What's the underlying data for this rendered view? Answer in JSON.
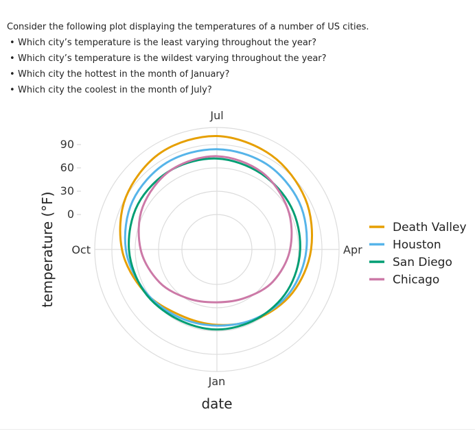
{
  "question": {
    "intro": "Consider the following plot displaying the temperatures of a number of US cities.",
    "items": [
      "Which city’s temperature is the least varying throughout the year?",
      "Which city’s temperature is the wildest varying throughout the year?",
      "Which city the hottest in the month of January?",
      "Which city the coolest in the month of July?"
    ]
  },
  "chart_data": {
    "type": "line",
    "coord": "polar",
    "xlabel": "date",
    "ylabel": "temperature (°F)",
    "x_ticks": [
      "Jan",
      "Apr",
      "Jul",
      "Oct"
    ],
    "y_ticks": [
      0,
      30,
      60,
      90
    ],
    "ylim": [
      -45,
      112
    ],
    "legend_position": "right",
    "grid": true,
    "series": [
      {
        "name": "Death Valley",
        "color": "#E69F00",
        "x": [
          "Jan",
          "Feb",
          "Mar",
          "Apr",
          "May",
          "Jun",
          "Jul",
          "Aug",
          "Sep",
          "Oct",
          "Nov",
          "Dec"
        ],
        "values": [
          52,
          58,
          67,
          76,
          86,
          95,
          101,
          99,
          90,
          77,
          63,
          52
        ]
      },
      {
        "name": "Houston",
        "color": "#56B4E9",
        "x": [
          "Jan",
          "Feb",
          "Mar",
          "Apr",
          "May",
          "Jun",
          "Jul",
          "Aug",
          "Sep",
          "Oct",
          "Nov",
          "Dec"
        ],
        "values": [
          53,
          57,
          64,
          70,
          77,
          82,
          84,
          84,
          80,
          72,
          62,
          55
        ]
      },
      {
        "name": "San Diego",
        "color": "#009E73",
        "x": [
          "Jan",
          "Feb",
          "Mar",
          "Apr",
          "May",
          "Jun",
          "Jul",
          "Aug",
          "Sep",
          "Oct",
          "Nov",
          "Dec"
        ],
        "values": [
          58,
          58,
          60,
          62,
          65,
          68,
          72,
          73,
          72,
          68,
          63,
          58
        ]
      },
      {
        "name": "Chicago",
        "color": "#CC79A7",
        "x": [
          "Jan",
          "Feb",
          "Mar",
          "Apr",
          "May",
          "Jun",
          "Jul",
          "Aug",
          "Sep",
          "Oct",
          "Nov",
          "Dec"
        ],
        "values": [
          23,
          27,
          38,
          49,
          60,
          70,
          75,
          73,
          65,
          53,
          40,
          28
        ]
      }
    ]
  }
}
